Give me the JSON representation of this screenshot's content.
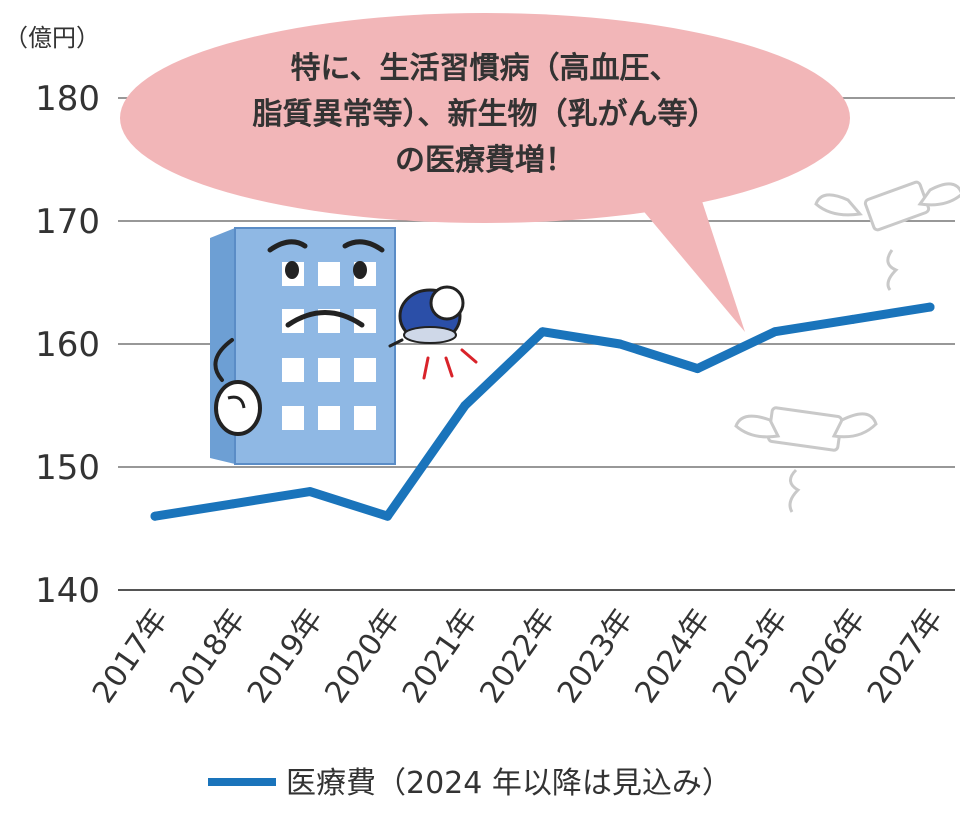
{
  "chart_data": {
    "type": "line",
    "unit_label": "（億円）",
    "categories": [
      "2017年",
      "2018年",
      "2019年",
      "2020年",
      "2021年",
      "2022年",
      "2023年",
      "2024年",
      "2025年",
      "2026年",
      "2027年"
    ],
    "series": [
      {
        "name": "医療費（2024 年以降は見込み）",
        "color": "#1a74bb",
        "values": [
          146,
          147,
          148,
          146,
          155,
          161,
          160,
          158,
          161,
          162,
          163
        ]
      }
    ],
    "ylim": [
      140,
      180
    ],
    "yticks": [
      "140",
      "150",
      "160",
      "170",
      "180"
    ],
    "grid": true,
    "legend_position": "bottom"
  },
  "callout": {
    "lines": [
      "特に、生活習慣病（高血圧、",
      "脂質異常等）、新生物（乳がん等）",
      "の医療費増！"
    ],
    "fill": "#f2b6b8"
  }
}
